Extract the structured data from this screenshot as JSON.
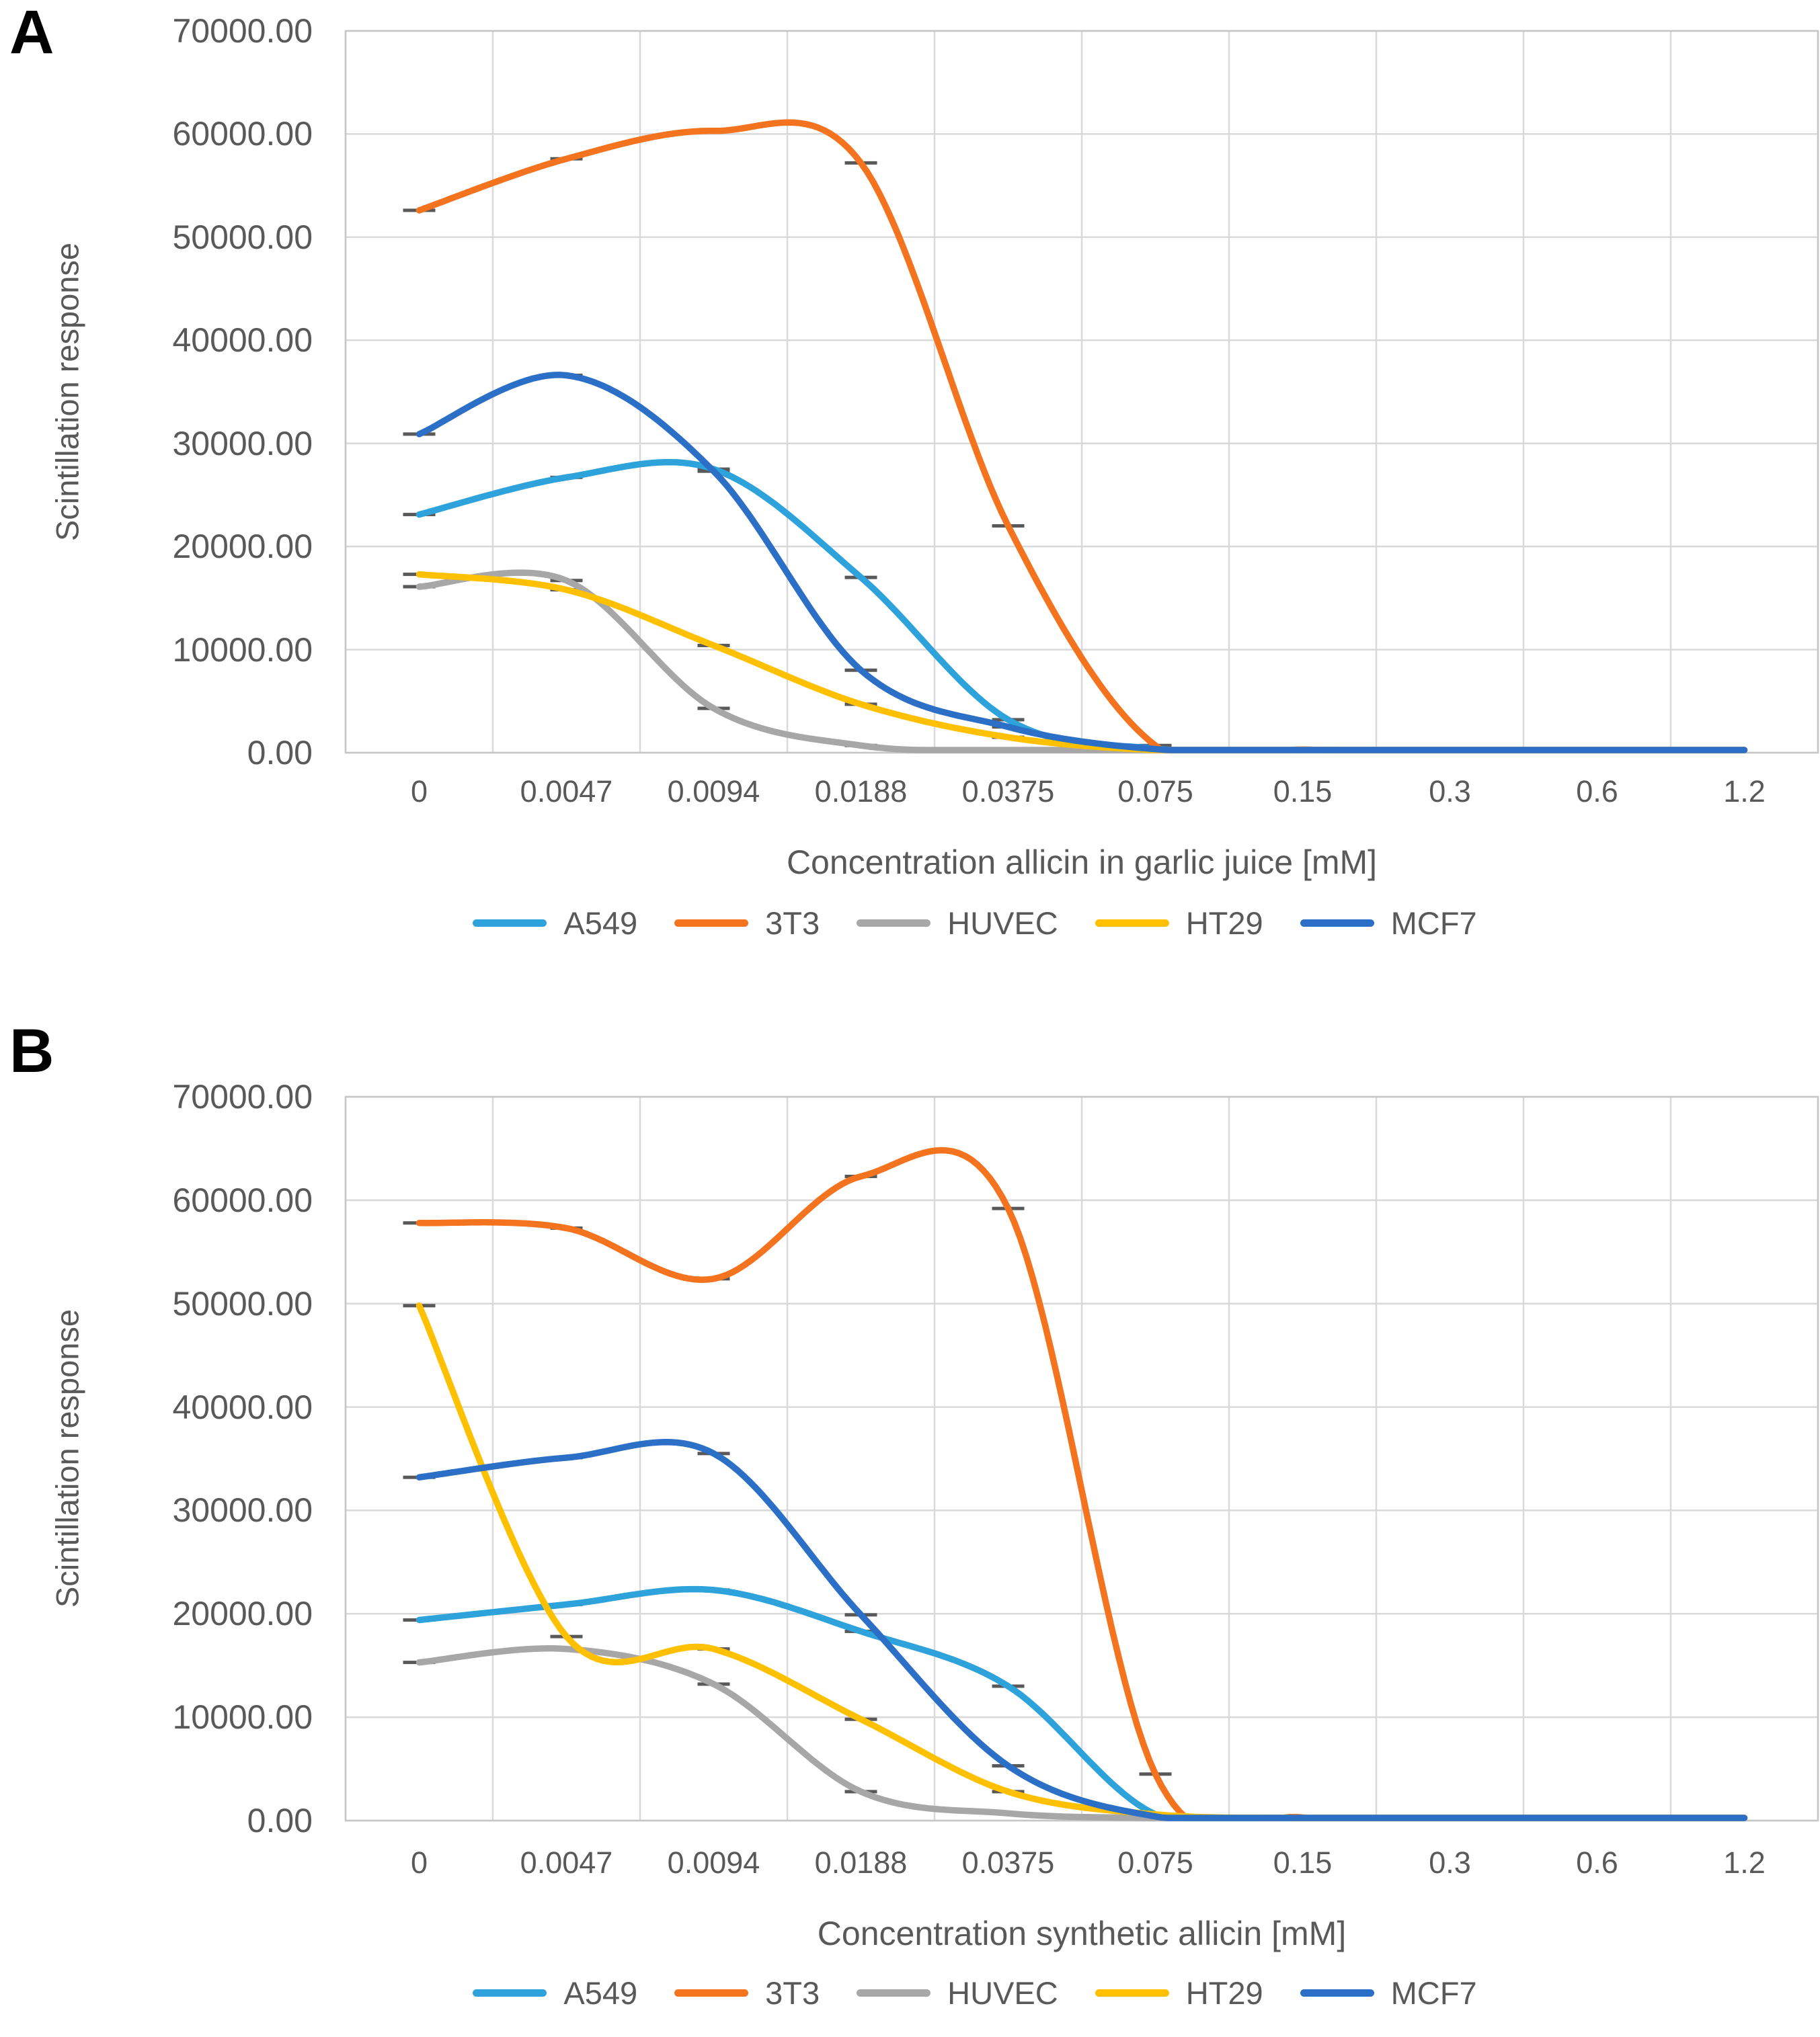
{
  "figure": {
    "panels": [
      {
        "label": "A",
        "chart_data": {
          "type": "line",
          "xlabel": "Concentration allicin in garlic juice [mM]",
          "ylabel": "Scintillation response",
          "ylim": [
            0,
            70000
          ],
          "grid": true,
          "legend_position": "bottom",
          "x_tick_labels": [
            "0",
            "0.0047",
            "0.0094",
            "0.0188",
            "0.0375",
            "0.075",
            "0.15",
            "0.3",
            "0.6",
            "1.2"
          ],
          "y_tick_labels": [
            "70000.00",
            "60000.00",
            "50000.00",
            "40000.00",
            "30000.00",
            "20000.00",
            "10000.00",
            "0.00"
          ],
          "error_tick_indices": [
            0,
            1,
            2,
            3,
            4,
            5
          ],
          "series": [
            {
              "name": "A549",
              "color": "#2DA2DB",
              "values": [
                23100,
                26700,
                27500,
                17000,
                3200,
                400,
                250,
                250,
                250,
                250
              ]
            },
            {
              "name": "3T3",
              "color": "#F4731F",
              "values": [
                52600,
                57600,
                60300,
                57200,
                22000,
                700,
                300,
                250,
                250,
                250
              ]
            },
            {
              "name": "HUVEC",
              "color": "#A7A7A7",
              "values": [
                16100,
                16700,
                4300,
                700,
                200,
                120,
                100,
                100,
                100,
                100
              ]
            },
            {
              "name": "HT29",
              "color": "#FFC000",
              "values": [
                17300,
                15800,
                10400,
                4700,
                1500,
                250,
                150,
                150,
                150,
                150
              ]
            },
            {
              "name": "MCF7",
              "color": "#2B6FC6",
              "values": [
                30900,
                36600,
                27300,
                8000,
                2500,
                350,
                250,
                250,
                250,
                250
              ]
            }
          ]
        }
      },
      {
        "label": "B",
        "chart_data": {
          "type": "line",
          "xlabel": "Concentration synthetic allicin [mM]",
          "ylabel": "Scintillation response",
          "ylim": [
            0,
            70000
          ],
          "grid": true,
          "legend_position": "bottom",
          "x_tick_labels": [
            "0",
            "0.0047",
            "0.0094",
            "0.0188",
            "0.0375",
            "0.075",
            "0.15",
            "0.3",
            "0.6",
            "1.2"
          ],
          "y_tick_labels": [
            "70000.00",
            "60000.00",
            "50000.00",
            "40000.00",
            "30000.00",
            "20000.00",
            "10000.00",
            "0.00"
          ],
          "error_tick_indices": [
            0,
            1,
            2,
            3,
            4,
            5
          ],
          "series": [
            {
              "name": "A549",
              "color": "#2DA2DB",
              "values": [
                19400,
                20900,
                22300,
                18300,
                13000,
                600,
                250,
                250,
                250,
                250
              ]
            },
            {
              "name": "3T3",
              "color": "#F4731F",
              "values": [
                57800,
                57300,
                52400,
                62300,
                59200,
                4500,
                300,
                250,
                250,
                250
              ]
            },
            {
              "name": "HUVEC",
              "color": "#A7A7A7",
              "values": [
                15300,
                16600,
                13200,
                2800,
                700,
                250,
                200,
                200,
                200,
                200
              ]
            },
            {
              "name": "HT29",
              "color": "#FFC000",
              "values": [
                49800,
                17800,
                16600,
                9800,
                2800,
                600,
                250,
                250,
                250,
                250
              ]
            },
            {
              "name": "MCF7",
              "color": "#2B6FC6",
              "values": [
                33200,
                35100,
                35500,
                19900,
                5300,
                400,
                250,
                250,
                250,
                250
              ]
            }
          ]
        }
      }
    ]
  }
}
